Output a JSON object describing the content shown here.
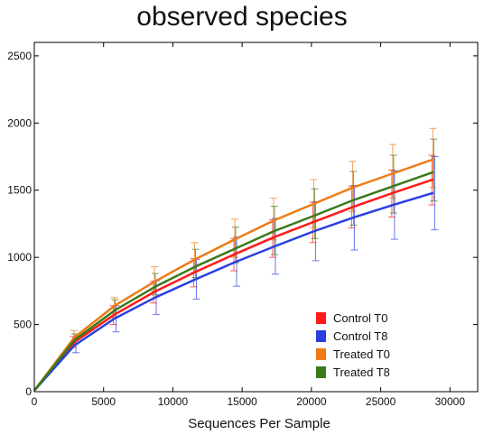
{
  "chart_data": {
    "type": "line",
    "title": "observed species",
    "xlabel": "Sequences Per Sample",
    "ylabel": "",
    "xlim": [
      0,
      32000
    ],
    "ylim": [
      0,
      2600
    ],
    "xticks": [
      0,
      5000,
      10000,
      15000,
      20000,
      25000,
      30000
    ],
    "yticks": [
      0,
      500,
      1000,
      1500,
      2000,
      2500
    ],
    "grid": false,
    "legend_position": "bottom-right",
    "x": [
      10,
      2900,
      5800,
      8700,
      11600,
      14500,
      17300,
      20200,
      23000,
      25900,
      28800
    ],
    "series": [
      {
        "name": "Control T0",
        "color": "#ff1a1a",
        "values": [
          10,
          370,
          575,
          745,
          890,
          1025,
          1150,
          1265,
          1375,
          1480,
          1580
        ],
        "error_low": [
          10,
          330,
          500,
          660,
          780,
          900,
          1000,
          1110,
          1220,
          1300,
          1390
        ],
        "error_high": [
          10,
          410,
          640,
          820,
          990,
          1140,
          1280,
          1410,
          1530,
          1650,
          1760
        ]
      },
      {
        "name": "Control T8",
        "color": "#2a3fe0",
        "values": [
          10,
          345,
          545,
          700,
          835,
          965,
          1080,
          1195,
          1295,
          1390,
          1480
        ],
        "error_low": [
          10,
          290,
          445,
          575,
          690,
          785,
          875,
          975,
          1055,
          1135,
          1205
        ],
        "error_high": [
          10,
          400,
          640,
          825,
          985,
          1150,
          1290,
          1415,
          1535,
          1645,
          1750
        ]
      },
      {
        "name": "Treated T0",
        "color": "#f07a14",
        "values": [
          10,
          405,
          640,
          820,
          985,
          1135,
          1275,
          1400,
          1520,
          1625,
          1730
        ],
        "error_low": [
          10,
          375,
          580,
          750,
          890,
          1000,
          1130,
          1220,
          1340,
          1440,
          1520
        ],
        "error_high": [
          10,
          455,
          700,
          930,
          1110,
          1285,
          1440,
          1580,
          1715,
          1840,
          1960
        ]
      },
      {
        "name": "Treated T8",
        "color": "#3a7a1a",
        "values": [
          10,
          385,
          605,
          780,
          930,
          1065,
          1195,
          1310,
          1425,
          1530,
          1635
        ],
        "error_low": [
          10,
          355,
          550,
          720,
          850,
          960,
          1020,
          1140,
          1240,
          1330,
          1420
        ],
        "error_high": [
          10,
          430,
          685,
          880,
          1060,
          1225,
          1380,
          1510,
          1640,
          1760,
          1880
        ]
      }
    ]
  }
}
